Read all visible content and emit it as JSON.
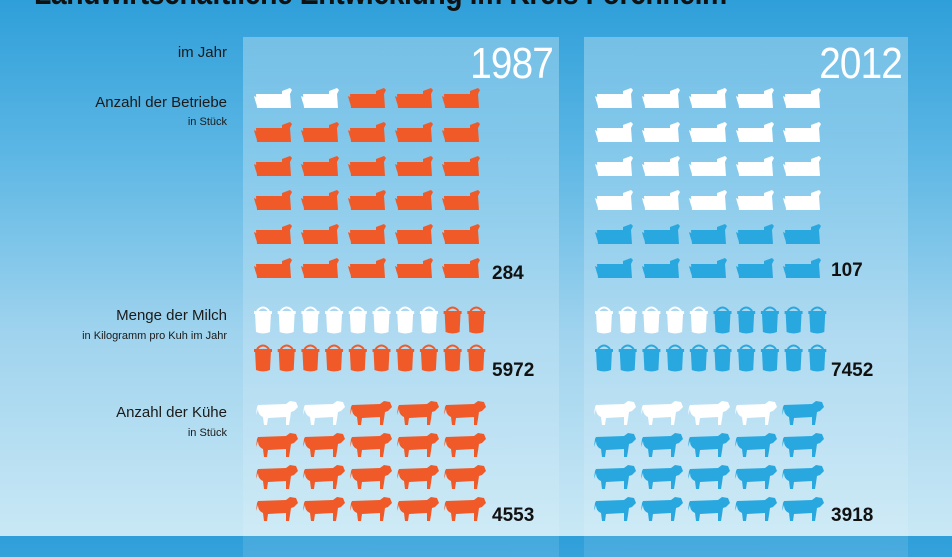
{
  "title": "Landwirtschaftliche Entwicklung im Kreis Forchheim",
  "row_header": "im Jahr",
  "columns": [
    {
      "year": "1987",
      "color": "#f05a28"
    },
    {
      "year": "2012",
      "color": "#29a8e0"
    }
  ],
  "rows": [
    {
      "label": "Anzahl der Betriebe",
      "sublabel": "in Stück",
      "icon": "trough-icon"
    },
    {
      "label": "Menge der Milch",
      "sublabel": "in Kilogramm pro Kuh im Jahr",
      "icon": "milk-can-icon"
    },
    {
      "label": "Anzahl der Kühe",
      "sublabel": "in Stück",
      "icon": "cow-icon"
    }
  ],
  "chart_data": {
    "type": "pictogram",
    "title": "Landwirtschaftliche Entwicklung im Kreis Forchheim",
    "categories": [
      "1987",
      "2012"
    ],
    "series": [
      {
        "name": "Anzahl der Betriebe",
        "unit": "in Stück",
        "values": [
          284,
          107
        ],
        "icons_filled": [
          28,
          10
        ],
        "icons_total": 30
      },
      {
        "name": "Menge der Milch",
        "unit": "in Kilogramm pro Kuh im Jahr",
        "values": [
          5972,
          7452
        ],
        "icons_filled": [
          12,
          15
        ],
        "icons_total": 20
      },
      {
        "name": "Anzahl der Kühe",
        "unit": "in Stück",
        "values": [
          4553,
          3918
        ],
        "icons_filled": [
          18,
          16
        ],
        "icons_total": 20
      }
    ],
    "value_labels": [
      "284",
      "107",
      "5972",
      "7452",
      "4553",
      "3918"
    ]
  }
}
